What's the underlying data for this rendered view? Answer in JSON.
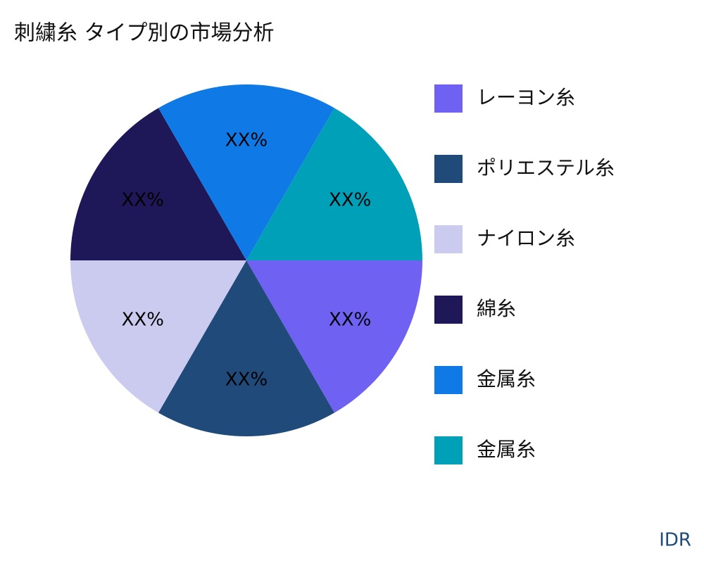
{
  "chart_data": {
    "type": "pie",
    "title": "刺繍糸 タイプ別の市場分析",
    "categories": [
      "レーヨン糸",
      "ポリエステル糸",
      "ナイロン糸",
      "綿糸",
      "金属糸",
      "金属糸"
    ],
    "values": [
      16.7,
      16.7,
      16.7,
      16.7,
      16.7,
      16.7
    ],
    "value_labels": [
      "XX%",
      "XX%",
      "XX%",
      "XX%",
      "XX%",
      "XX%"
    ],
    "colors": [
      "#6f61f2",
      "#1f4a7a",
      "#cbcbf0",
      "#1e1858",
      "#0f7ae6",
      "#00a0b8"
    ],
    "legend": "right",
    "source": "IDR"
  }
}
